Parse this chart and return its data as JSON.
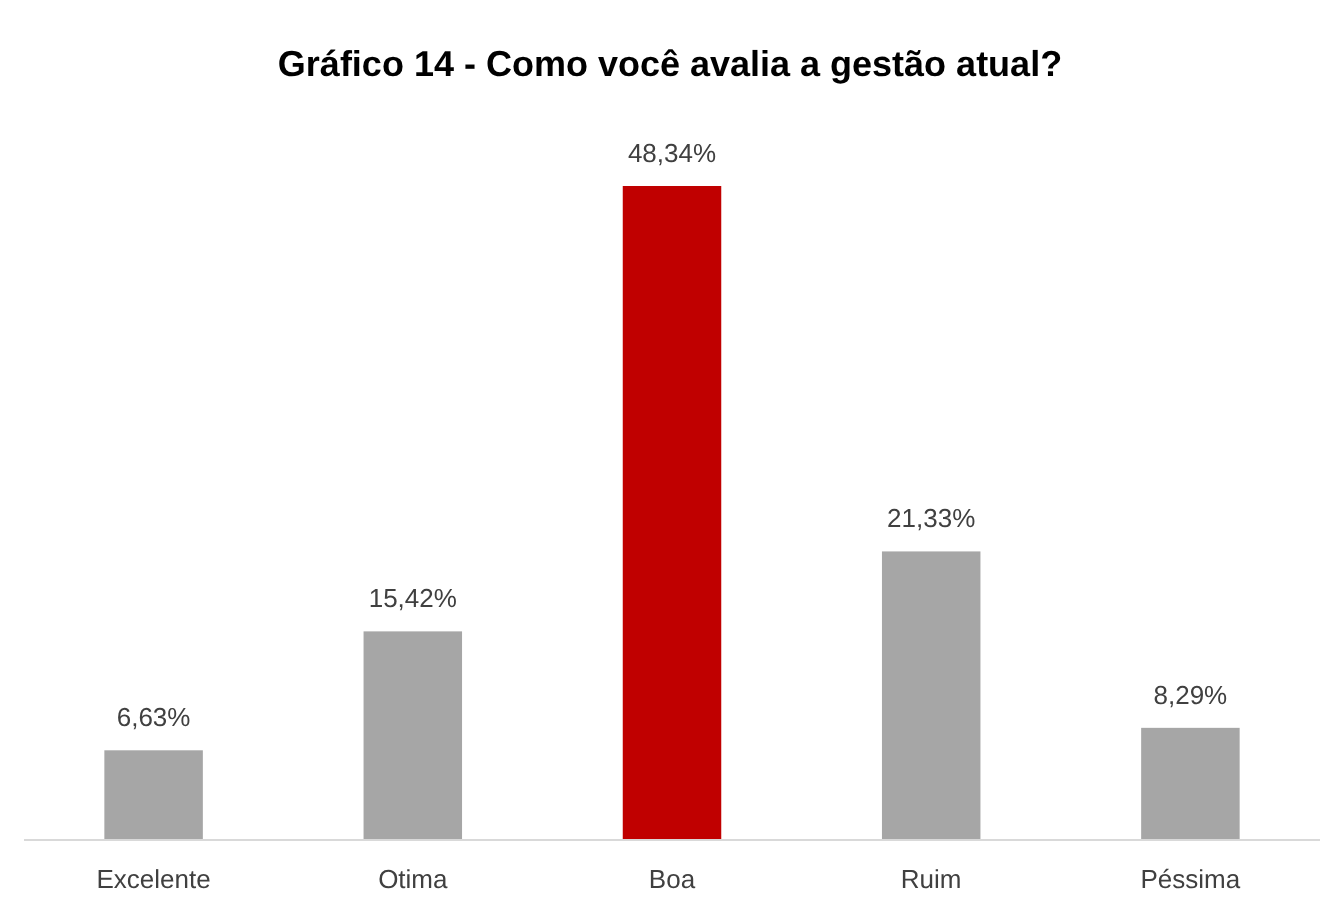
{
  "chart_data": {
    "type": "bar",
    "title": "Gráfico 14 - Como você avalia a gestão atual?",
    "categories": [
      "Excelente",
      "Otima",
      "Boa",
      "Ruim",
      "Péssima"
    ],
    "values": [
      6.63,
      15.42,
      48.34,
      21.33,
      8.29
    ],
    "value_labels": [
      "6,63%",
      "15,42%",
      "48,34%",
      "21,33%",
      "8,29%"
    ],
    "colors": [
      "#a6a6a6",
      "#a6a6a6",
      "#c00000",
      "#a6a6a6",
      "#a6a6a6"
    ]
  }
}
